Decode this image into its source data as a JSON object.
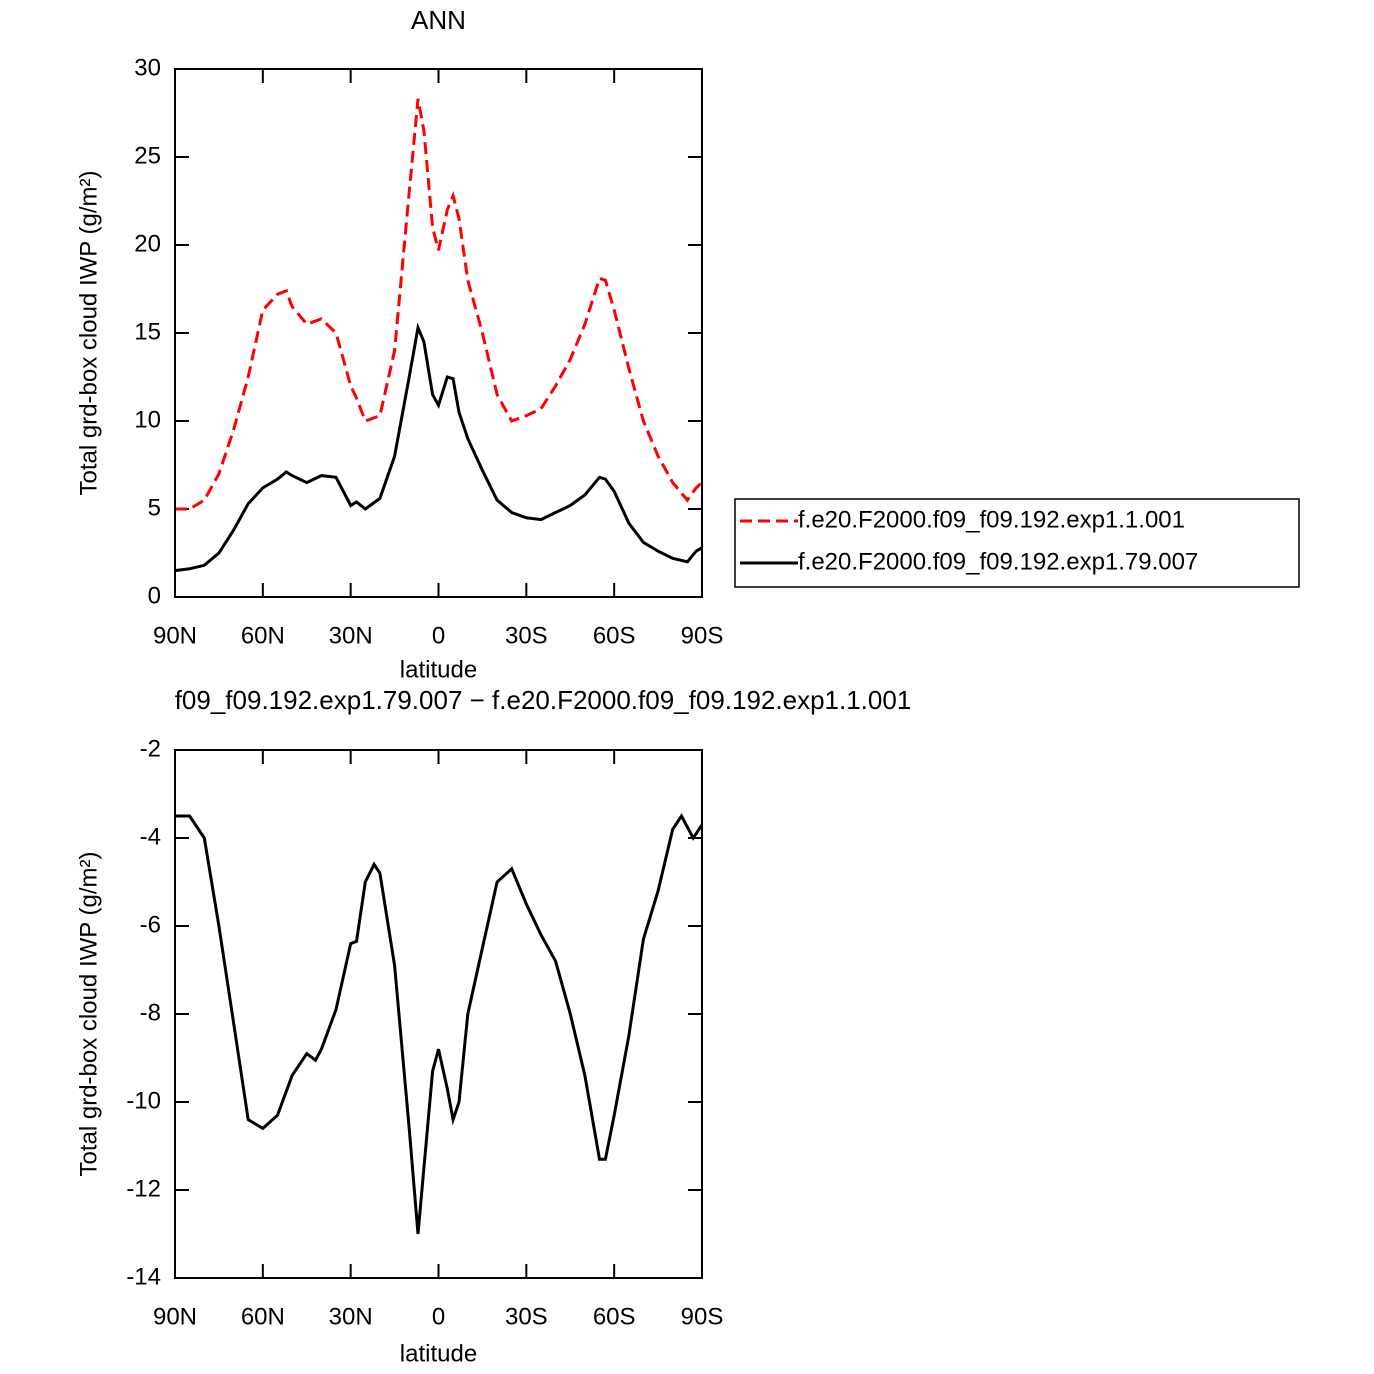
{
  "chart_data": [
    {
      "type": "line",
      "title": "ANN",
      "xlabel": "latitude",
      "ylabel": "Total grd-box cloud IWP (g/m²)",
      "x": [
        90,
        85,
        80,
        75,
        70,
        65,
        60,
        55,
        52,
        50,
        45,
        40,
        35,
        30,
        28,
        25,
        20,
        15,
        10,
        7,
        5,
        2,
        0,
        -3,
        -5,
        -7,
        -10,
        -15,
        -20,
        -25,
        -30,
        -35,
        -40,
        -45,
        -50,
        -55,
        -57,
        -60,
        -65,
        -70,
        -75,
        -80,
        -85,
        -88,
        -90
      ],
      "series": [
        {
          "name": "f.e20.F2000.f09_f09.192.exp1.1.001",
          "color": "#ff0000",
          "dashed": true,
          "values": [
            5.0,
            5.0,
            5.5,
            7.0,
            9.5,
            12.5,
            16.3,
            17.2,
            17.4,
            16.5,
            15.5,
            15.8,
            15.0,
            12.0,
            11.3,
            10.0,
            10.3,
            14.0,
            23.0,
            28.3,
            26.5,
            21.0,
            19.7,
            22.0,
            22.8,
            21.5,
            18.0,
            15.0,
            11.5,
            10.0,
            10.3,
            10.7,
            12.0,
            13.5,
            15.5,
            18.1,
            18.0,
            16.3,
            13.0,
            10.0,
            8.0,
            6.5,
            5.5,
            6.2,
            6.5
          ]
        },
        {
          "name": "f.e20.F2000.f09_f09.192.exp1.79.007",
          "color": "#000000",
          "dashed": false,
          "values": [
            1.5,
            1.6,
            1.8,
            2.5,
            3.8,
            5.3,
            6.2,
            6.7,
            7.1,
            6.9,
            6.5,
            6.9,
            6.8,
            5.2,
            5.4,
            5.0,
            5.6,
            8.0,
            12.5,
            15.3,
            14.5,
            11.5,
            10.9,
            12.5,
            12.4,
            10.5,
            9.0,
            7.2,
            5.5,
            4.8,
            4.5,
            4.4,
            4.8,
            5.2,
            5.8,
            6.8,
            6.7,
            6.0,
            4.2,
            3.1,
            2.6,
            2.2,
            2.0,
            2.6,
            2.8
          ]
        }
      ],
      "xlim": [
        90,
        -90
      ],
      "xticks": [
        {
          "value": 90,
          "label": "90N"
        },
        {
          "value": 60,
          "label": "60N"
        },
        {
          "value": 30,
          "label": "30N"
        },
        0,
        {
          "value": -30,
          "label": "30S"
        },
        {
          "value": -60,
          "label": "60S"
        },
        {
          "value": -90,
          "label": "90S"
        }
      ],
      "ylim": [
        0,
        30
      ],
      "yticks": [
        0,
        5,
        10,
        15,
        20,
        25,
        30
      ],
      "legend": "right"
    },
    {
      "type": "line",
      "title": "f09_f09.192.exp1.79.007 − f.e20.F2000.f09_f09.192.exp1.1.001",
      "xlabel": "latitude",
      "ylabel": "Total grd-box cloud IWP (g/m²)",
      "x": [
        90,
        85,
        80,
        75,
        70,
        65,
        60,
        55,
        50,
        45,
        42,
        40,
        35,
        30,
        28,
        25,
        22,
        20,
        15,
        10,
        7,
        5,
        2,
        0,
        -3,
        -5,
        -7,
        -10,
        -15,
        -20,
        -25,
        -30,
        -35,
        -40,
        -45,
        -50,
        -55,
        -57,
        -60,
        -65,
        -70,
        -75,
        -80,
        -83,
        -87,
        -90
      ],
      "series": [
        {
          "color": "#000000",
          "dashed": false,
          "values": [
            -3.5,
            -3.5,
            -4.0,
            -6.0,
            -8.2,
            -10.4,
            -10.6,
            -10.3,
            -9.4,
            -8.9,
            -9.05,
            -8.8,
            -7.9,
            -6.4,
            -6.35,
            -5.0,
            -4.6,
            -4.8,
            -6.9,
            -10.6,
            -13.0,
            -11.5,
            -9.3,
            -8.8,
            -9.7,
            -10.4,
            -10.0,
            -8.0,
            -6.5,
            -5.0,
            -4.7,
            -5.5,
            -6.2,
            -6.8,
            -8.0,
            -9.4,
            -11.3,
            -11.3,
            -10.3,
            -8.5,
            -6.3,
            -5.2,
            -3.8,
            -3.5,
            -4.0,
            -3.7
          ]
        }
      ],
      "xlim": [
        90,
        -90
      ],
      "xticks": [
        {
          "value": 90,
          "label": "90N"
        },
        {
          "value": 60,
          "label": "60N"
        },
        {
          "value": 30,
          "label": "30N"
        },
        0,
        {
          "value": -30,
          "label": "30S"
        },
        {
          "value": -60,
          "label": "60S"
        },
        {
          "value": -90,
          "label": "90S"
        }
      ],
      "ylim": [
        -14,
        -2
      ],
      "yticks": [
        -14,
        -12,
        -10,
        -8,
        -6,
        -4,
        -2
      ]
    }
  ]
}
